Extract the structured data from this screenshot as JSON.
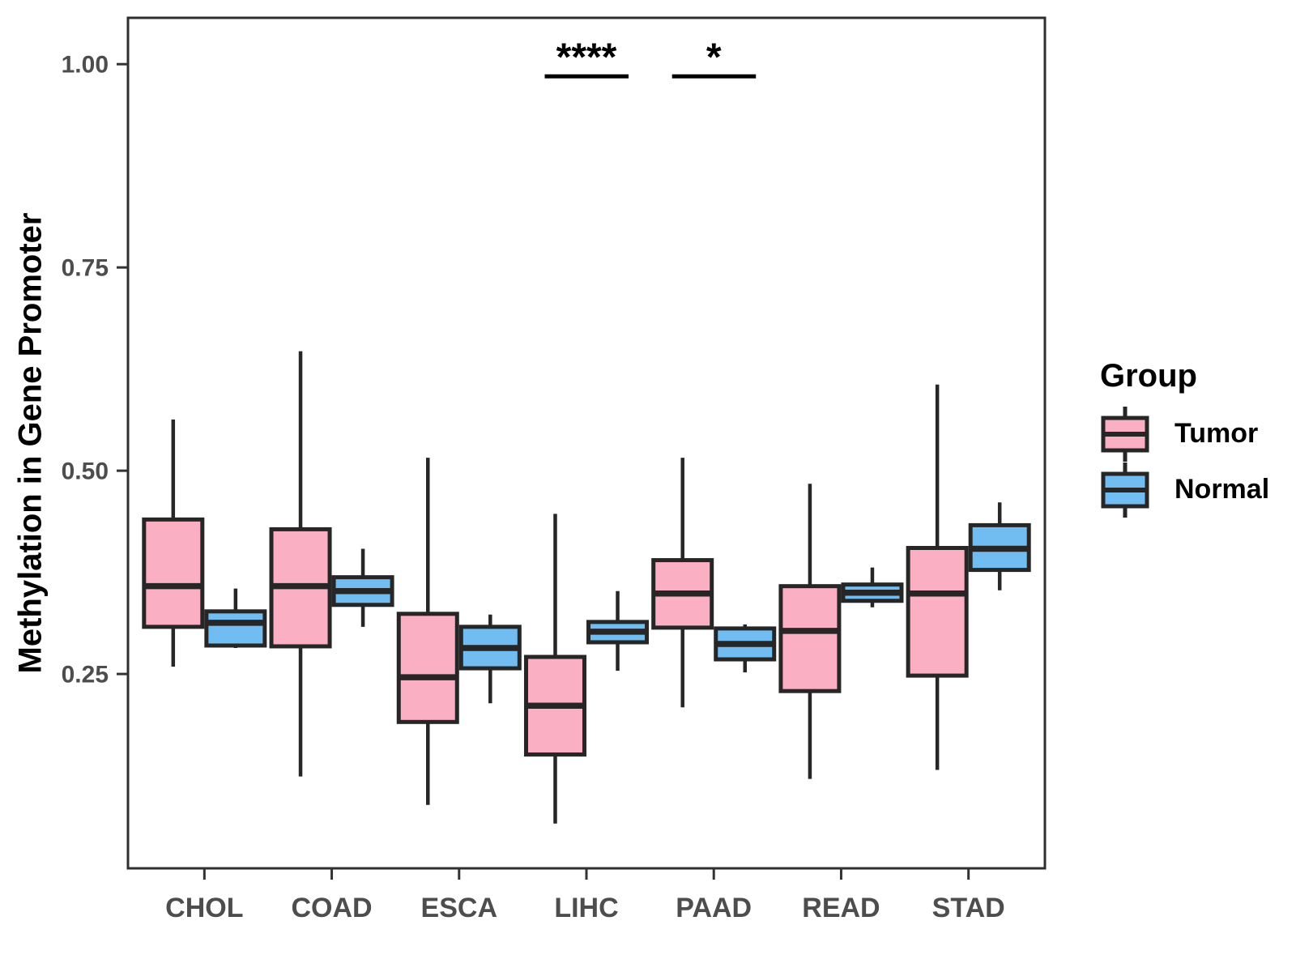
{
  "y_axis": {
    "title": "Methylation in Gene Promoter",
    "ticks": [
      {
        "value": 0.25,
        "label": "0.25"
      },
      {
        "value": 0.5,
        "label": "0.50"
      },
      {
        "value": 0.75,
        "label": "0.75"
      },
      {
        "value": 1.0,
        "label": "1.00"
      }
    ]
  },
  "legend": {
    "title": "Group",
    "items": [
      {
        "label": "Tumor",
        "color": "#FBAFC2"
      },
      {
        "label": "Normal",
        "color": "#71BDF1"
      }
    ]
  },
  "style": {
    "box_stroke": "#262626",
    "panel_border": "#2F2F2F",
    "tick_label_color": "#4D4D4D",
    "annotation_color": "#000000"
  },
  "chart_data": {
    "type": "boxplot",
    "title": "",
    "xlabel": "",
    "ylabel": "Methylation in Gene Promoter",
    "categories": [
      "CHOL",
      "COAD",
      "ESCA",
      "LIHC",
      "PAAD",
      "READ",
      "STAD"
    ],
    "groups": [
      "Tumor",
      "Normal"
    ],
    "ylim": [
      0.011,
      1.057
    ],
    "grid": false,
    "legend_position": "right",
    "series": [
      {
        "name": "Tumor",
        "color": "#FBAFC2",
        "boxes": [
          {
            "category": "CHOL",
            "min": 0.259,
            "q1": 0.308,
            "median": 0.358,
            "q3": 0.44,
            "max": 0.563
          },
          {
            "category": "COAD",
            "min": 0.124,
            "q1": 0.284,
            "median": 0.358,
            "q3": 0.428,
            "max": 0.647
          },
          {
            "category": "ESCA",
            "min": 0.089,
            "q1": 0.191,
            "median": 0.246,
            "q3": 0.324,
            "max": 0.516
          },
          {
            "category": "LIHC",
            "min": 0.066,
            "q1": 0.151,
            "median": 0.211,
            "q3": 0.271,
            "max": 0.447
          },
          {
            "category": "PAAD",
            "min": 0.209,
            "q1": 0.307,
            "median": 0.349,
            "q3": 0.39,
            "max": 0.516
          },
          {
            "category": "READ",
            "min": 0.121,
            "q1": 0.229,
            "median": 0.303,
            "q3": 0.358,
            "max": 0.484
          },
          {
            "category": "STAD",
            "min": 0.132,
            "q1": 0.248,
            "median": 0.349,
            "q3": 0.405,
            "max": 0.606
          }
        ]
      },
      {
        "name": "Normal",
        "color": "#71BDF1",
        "boxes": [
          {
            "category": "CHOL",
            "min": 0.282,
            "q1": 0.285,
            "median": 0.313,
            "q3": 0.327,
            "max": 0.355
          },
          {
            "category": "COAD",
            "min": 0.308,
            "q1": 0.335,
            "median": 0.352,
            "q3": 0.369,
            "max": 0.404
          },
          {
            "category": "ESCA",
            "min": 0.214,
            "q1": 0.257,
            "median": 0.282,
            "q3": 0.308,
            "max": 0.323
          },
          {
            "category": "LIHC",
            "min": 0.254,
            "q1": 0.289,
            "median": 0.302,
            "q3": 0.314,
            "max": 0.352
          },
          {
            "category": "PAAD",
            "min": 0.252,
            "q1": 0.268,
            "median": 0.287,
            "q3": 0.306,
            "max": 0.311
          },
          {
            "category": "READ",
            "min": 0.332,
            "q1": 0.34,
            "median": 0.35,
            "q3": 0.36,
            "max": 0.381
          },
          {
            "category": "STAD",
            "min": 0.353,
            "q1": 0.378,
            "median": 0.404,
            "q3": 0.433,
            "max": 0.461
          }
        ]
      }
    ],
    "annotations": [
      {
        "category": "LIHC",
        "label": "****",
        "y": 0.985
      },
      {
        "category": "PAAD",
        "label": "*",
        "y": 0.985
      }
    ]
  }
}
